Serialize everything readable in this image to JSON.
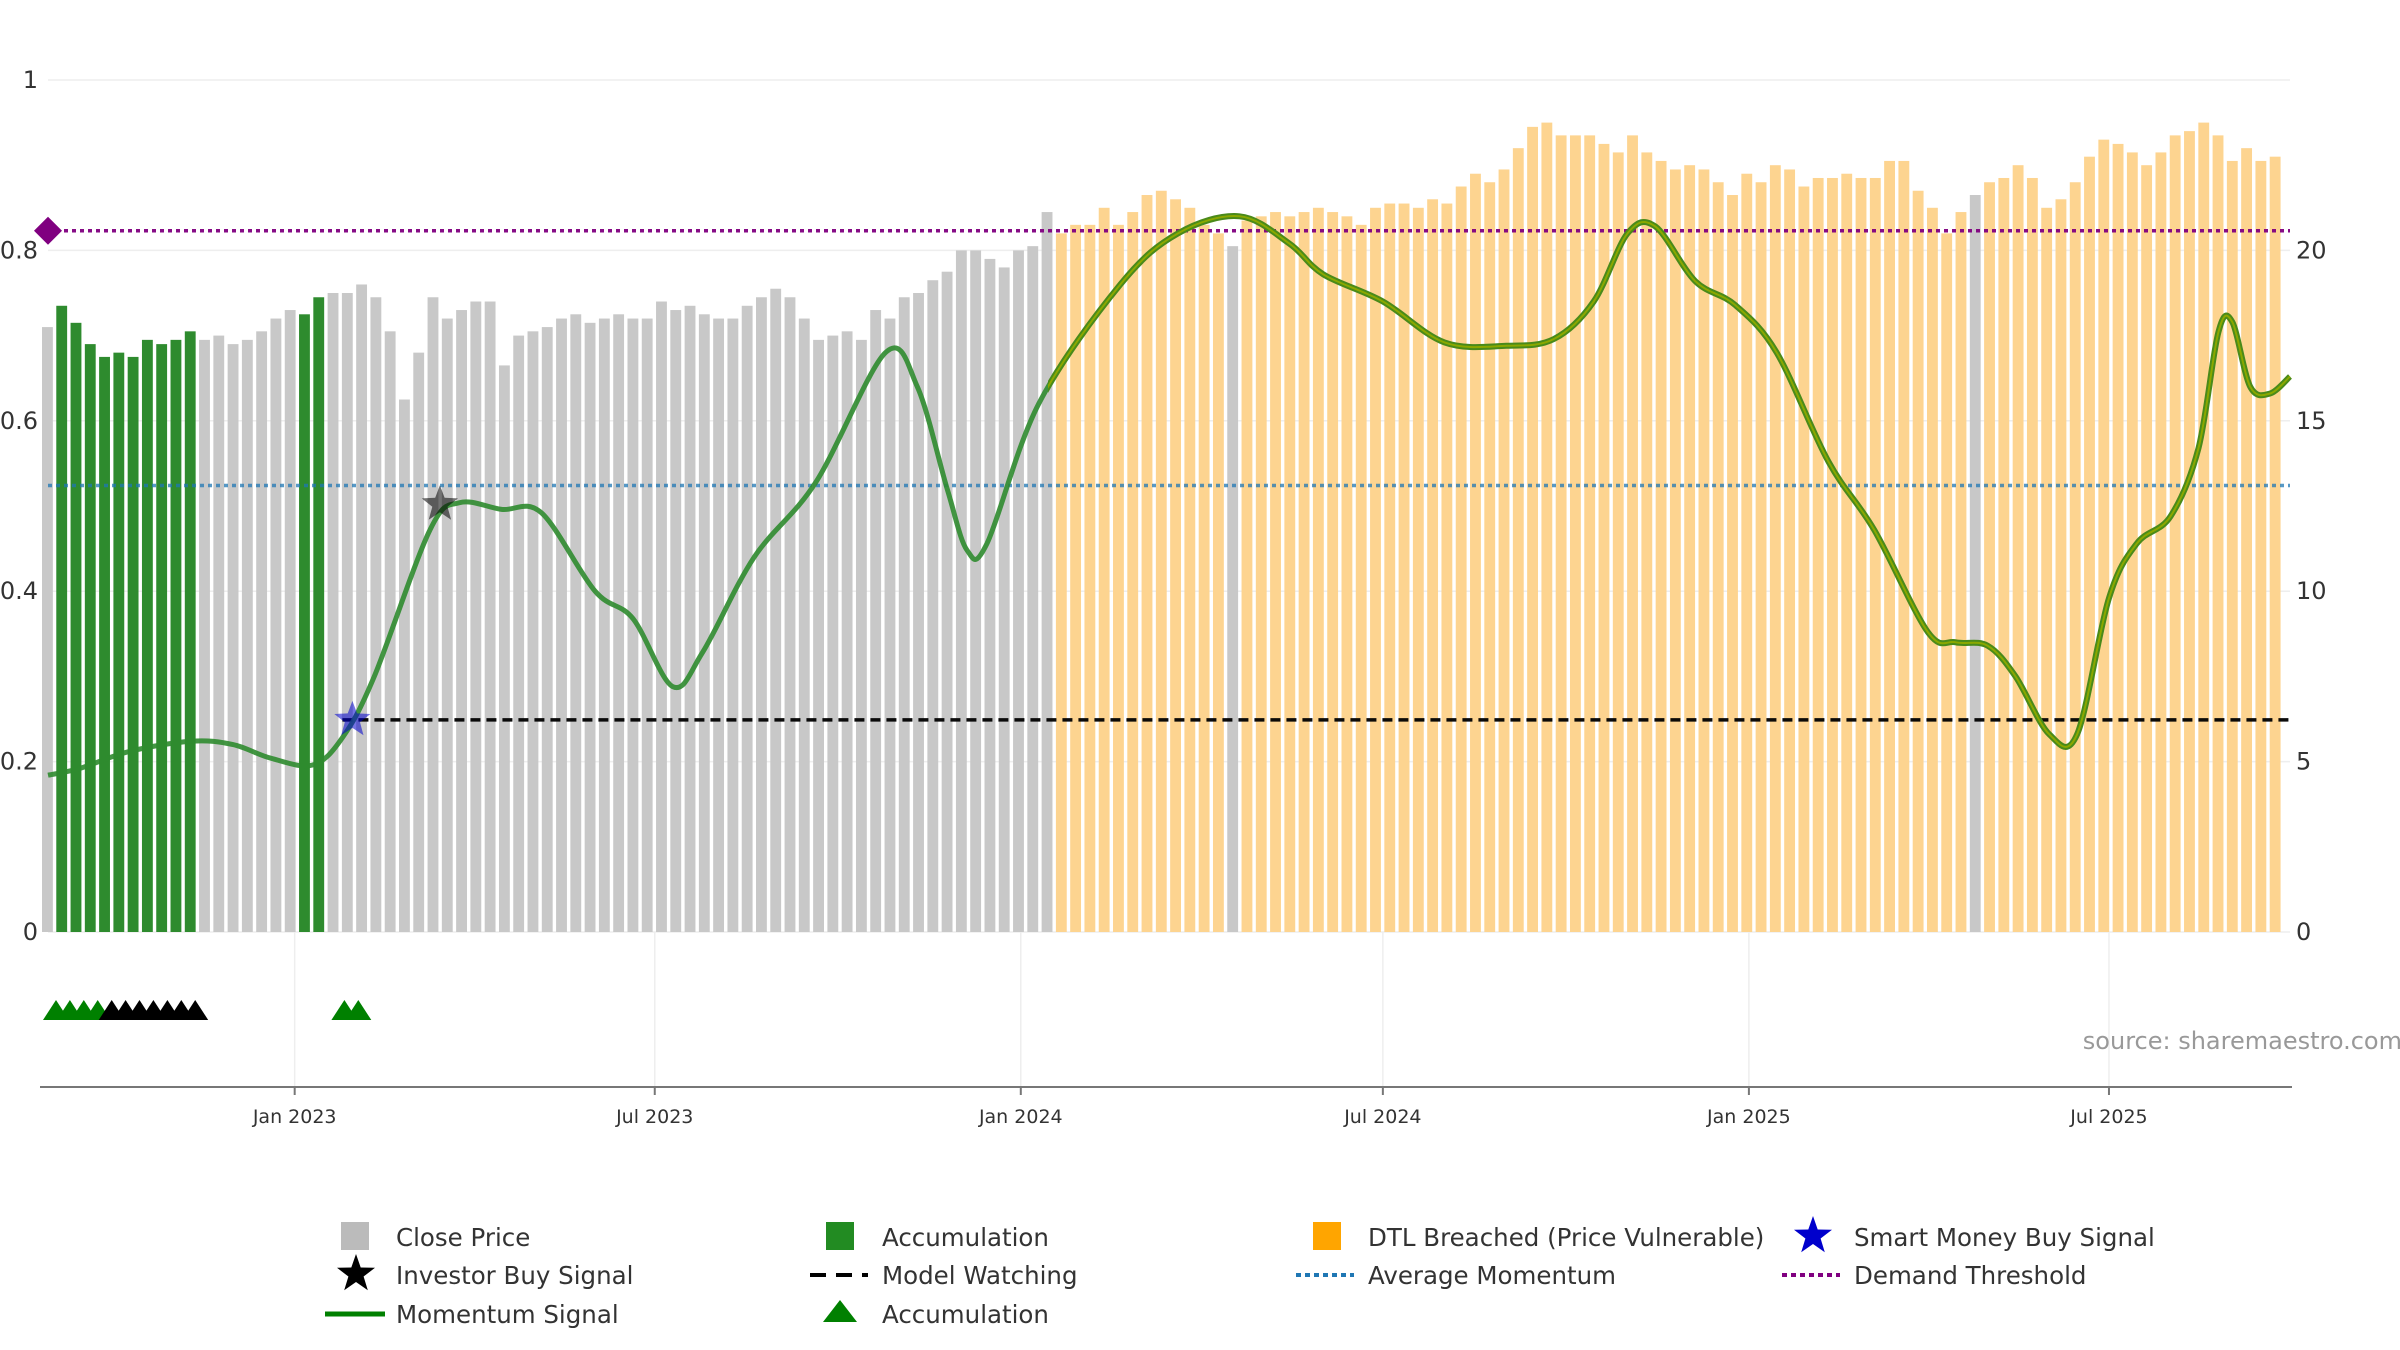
{
  "chart_data": {
    "type": "bar",
    "title": "",
    "source": "source: sharemaestro.com",
    "left_axis": {
      "min": 0,
      "max": 1,
      "ticks": [
        "0",
        "0.2",
        "0.4",
        "0.6",
        "0.8",
        "1"
      ]
    },
    "right_axis": {
      "min": 0,
      "max": 25,
      "ticks": [
        "0",
        "5",
        "10",
        "15",
        "20"
      ]
    },
    "x_axis": {
      "start": "2022-08-30",
      "end": "2025-09-30",
      "ticks": [
        {
          "date": "2023-01-01",
          "label": "Jan 2023"
        },
        {
          "date": "2023-07-01",
          "label": "Jul 2023"
        },
        {
          "date": "2024-01-01",
          "label": "Jan 2024"
        },
        {
          "date": "2024-07-01",
          "label": "Jul 2024"
        },
        {
          "date": "2025-01-01",
          "label": "Jan 2025"
        },
        {
          "date": "2025-07-01",
          "label": "Jul 2025"
        }
      ]
    },
    "bar_series": {
      "name": "Close Price (scaled 0-1)",
      "values": [
        0.71,
        0.735,
        0.715,
        0.69,
        0.675,
        0.68,
        0.675,
        0.695,
        0.69,
        0.695,
        0.705,
        0.695,
        0.7,
        0.69,
        0.695,
        0.705,
        0.72,
        0.73,
        0.725,
        0.745,
        0.75,
        0.75,
        0.76,
        0.745,
        0.705,
        0.625,
        0.68,
        0.745,
        0.72,
        0.73,
        0.74,
        0.74,
        0.665,
        0.7,
        0.705,
        0.71,
        0.72,
        0.725,
        0.715,
        0.72,
        0.725,
        0.72,
        0.72,
        0.74,
        0.73,
        0.735,
        0.725,
        0.72,
        0.72,
        0.735,
        0.745,
        0.755,
        0.745,
        0.72,
        0.695,
        0.7,
        0.705,
        0.695,
        0.73,
        0.72,
        0.745,
        0.75,
        0.765,
        0.775,
        0.8,
        0.8,
        0.79,
        0.78,
        0.8,
        0.805,
        0.845,
        0.82,
        0.83,
        0.83,
        0.85,
        0.83,
        0.845,
        0.865,
        0.87,
        0.86,
        0.85,
        0.83,
        0.82,
        0.805,
        0.835,
        0.84,
        0.845,
        0.84,
        0.845,
        0.85,
        0.845,
        0.84,
        0.83,
        0.85,
        0.855,
        0.855,
        0.85,
        0.86,
        0.855,
        0.875,
        0.89,
        0.88,
        0.895,
        0.92,
        0.945,
        0.95,
        0.935,
        0.935,
        0.935,
        0.925,
        0.915,
        0.935,
        0.915,
        0.905,
        0.895,
        0.9,
        0.895,
        0.88,
        0.865,
        0.89,
        0.88,
        0.9,
        0.895,
        0.875,
        0.885,
        0.885,
        0.89,
        0.885,
        0.885,
        0.905,
        0.905,
        0.87,
        0.85,
        0.82,
        0.845,
        0.865,
        0.88,
        0.885,
        0.9,
        0.885,
        0.85,
        0.86,
        0.88,
        0.91,
        0.93,
        0.925,
        0.915,
        0.9,
        0.915,
        0.935,
        0.94,
        0.95,
        0.935,
        0.905,
        0.92,
        0.905,
        0.91
      ],
      "state_runs": [
        {
          "state": "close",
          "from": 0,
          "to": 0
        },
        {
          "state": "accumulation",
          "from": 1,
          "to": 10
        },
        {
          "state": "close",
          "from": 11,
          "to": 17
        },
        {
          "state": "accumulation",
          "from": 18,
          "to": 19
        },
        {
          "state": "close",
          "from": 20,
          "to": 70
        },
        {
          "state": "dtl_breached",
          "from": 71,
          "to": 82
        },
        {
          "state": "close",
          "from": 83,
          "to": 83
        },
        {
          "state": "dtl_breached",
          "from": 84,
          "to": 134
        },
        {
          "state": "close",
          "from": 135,
          "to": 135
        },
        {
          "state": "dtl_breached",
          "from": 136,
          "to": 159
        }
      ]
    },
    "momentum_series": {
      "name": "Momentum Signal",
      "axis": "right",
      "points": [
        {
          "date": "2022-08-30",
          "value": 4.6
        },
        {
          "date": "2022-09-15",
          "value": 4.8
        },
        {
          "date": "2022-10-10",
          "value": 5.3
        },
        {
          "date": "2022-11-10",
          "value": 5.6
        },
        {
          "date": "2022-12-01",
          "value": 5.5
        },
        {
          "date": "2022-12-20",
          "value": 5.1
        },
        {
          "date": "2023-01-10",
          "value": 4.9
        },
        {
          "date": "2023-01-25",
          "value": 5.7
        },
        {
          "date": "2023-02-10",
          "value": 7.5
        },
        {
          "date": "2023-03-10",
          "value": 11.8
        },
        {
          "date": "2023-03-25",
          "value": 12.6
        },
        {
          "date": "2023-04-15",
          "value": 12.4
        },
        {
          "date": "2023-05-05",
          "value": 12.3
        },
        {
          "date": "2023-06-01",
          "value": 10.0
        },
        {
          "date": "2023-06-20",
          "value": 9.2
        },
        {
          "date": "2023-07-10",
          "value": 7.2
        },
        {
          "date": "2023-07-25",
          "value": 8.2
        },
        {
          "date": "2023-08-20",
          "value": 11.0
        },
        {
          "date": "2023-09-20",
          "value": 13.2
        },
        {
          "date": "2023-10-25",
          "value": 17.0
        },
        {
          "date": "2023-11-10",
          "value": 16.0
        },
        {
          "date": "2023-11-25",
          "value": 13.0
        },
        {
          "date": "2023-12-05",
          "value": 11.2
        },
        {
          "date": "2023-12-15",
          "value": 11.4
        },
        {
          "date": "2024-01-10",
          "value": 15.5
        },
        {
          "date": "2024-02-20",
          "value": 19.0
        },
        {
          "date": "2024-03-20",
          "value": 20.5
        },
        {
          "date": "2024-04-20",
          "value": 21.0
        },
        {
          "date": "2024-05-15",
          "value": 20.2
        },
        {
          "date": "2024-06-01",
          "value": 19.3
        },
        {
          "date": "2024-07-01",
          "value": 18.5
        },
        {
          "date": "2024-08-01",
          "value": 17.3
        },
        {
          "date": "2024-09-01",
          "value": 17.2
        },
        {
          "date": "2024-09-25",
          "value": 17.4
        },
        {
          "date": "2024-10-15",
          "value": 18.5
        },
        {
          "date": "2024-11-01",
          "value": 20.5
        },
        {
          "date": "2024-11-15",
          "value": 20.7
        },
        {
          "date": "2024-12-05",
          "value": 19.1
        },
        {
          "date": "2024-12-25",
          "value": 18.4
        },
        {
          "date": "2025-01-15",
          "value": 17.0
        },
        {
          "date": "2025-02-10",
          "value": 13.8
        },
        {
          "date": "2025-03-05",
          "value": 11.8
        },
        {
          "date": "2025-04-01",
          "value": 8.8
        },
        {
          "date": "2025-04-15",
          "value": 8.5
        },
        {
          "date": "2025-05-01",
          "value": 8.4
        },
        {
          "date": "2025-05-15",
          "value": 7.5
        },
        {
          "date": "2025-06-01",
          "value": 5.8
        },
        {
          "date": "2025-06-15",
          "value": 5.8
        },
        {
          "date": "2025-07-01",
          "value": 9.8
        },
        {
          "date": "2025-07-15",
          "value": 11.4
        },
        {
          "date": "2025-08-01",
          "value": 12.2
        },
        {
          "date": "2025-08-15",
          "value": 14.2
        },
        {
          "date": "2025-08-25",
          "value": 17.6
        },
        {
          "date": "2025-09-01",
          "value": 17.9
        },
        {
          "date": "2025-09-10",
          "value": 16.0
        },
        {
          "date": "2025-09-20",
          "value": 15.8
        },
        {
          "date": "2025-09-30",
          "value": 16.3
        }
      ]
    },
    "reference_lines": [
      {
        "name": "Demand Threshold",
        "value": 0.823,
        "axis": "left",
        "color": "#800080",
        "style": "dotted"
      },
      {
        "name": "Average Momentum",
        "value": 0.524,
        "axis": "left",
        "color": "#1f77b4",
        "style": "dotted"
      },
      {
        "name": "Model Watching",
        "value": 0.249,
        "axis": "left",
        "color": "#000000",
        "style": "dashed",
        "from_date": "2023-01-25"
      }
    ],
    "signals": [
      {
        "type": "Smart Money Buy Signal",
        "date": "2023-01-30",
        "value": 0.249,
        "color": "#0000cc"
      },
      {
        "type": "Investor Buy Signal",
        "date": "2023-03-15",
        "value": 0.502,
        "color": "#000000"
      }
    ],
    "demand_marker": {
      "date": "2022-08-30",
      "value": 0.823,
      "color": "#800080"
    },
    "triangle_markers": [
      {
        "color": "#008000",
        "dates": [
          "2022-09-03",
          "2022-09-10",
          "2022-09-17",
          "2022-09-24"
        ]
      },
      {
        "color": "#000000",
        "dates": [
          "2022-10-01",
          "2022-10-08",
          "2022-10-15",
          "2022-10-22",
          "2022-10-29",
          "2022-11-05",
          "2022-11-12"
        ]
      },
      {
        "color": "#008000",
        "dates": [
          "2023-01-26",
          "2023-02-02"
        ]
      }
    ],
    "colors": {
      "close": "#c8c8c8",
      "accumulation": "#2e8b2e",
      "dtl_breached": "#fdd490",
      "momentum": "#2f8b2f",
      "momentum_highlight": "#8aa800",
      "accumulation_triangle": "#008000",
      "axis": "#777777",
      "grid": "#eeeeee"
    },
    "legend": [
      {
        "label": "Close Price",
        "symbol": "square",
        "color": "#bbbbbb"
      },
      {
        "label": "Accumulation",
        "symbol": "square",
        "color": "#228b22"
      },
      {
        "label": "DTL Breached (Price Vulnerable)",
        "symbol": "square",
        "color": "#ffa500"
      },
      {
        "label": "Smart Money Buy Signal",
        "symbol": "star",
        "color": "#0000cc"
      },
      {
        "label": "Investor Buy Signal",
        "symbol": "star",
        "color": "#000000"
      },
      {
        "label": "Model Watching",
        "symbol": "dashed-line",
        "color": "#000000"
      },
      {
        "label": "Average Momentum",
        "symbol": "dotted-line",
        "color": "#1f77b4"
      },
      {
        "label": "Demand Threshold",
        "symbol": "dotted-line",
        "color": "#800080"
      },
      {
        "label": "Momentum Signal",
        "symbol": "line",
        "color": "#008000"
      },
      {
        "label": "Accumulation",
        "symbol": "triangle",
        "color": "#008000"
      }
    ]
  }
}
